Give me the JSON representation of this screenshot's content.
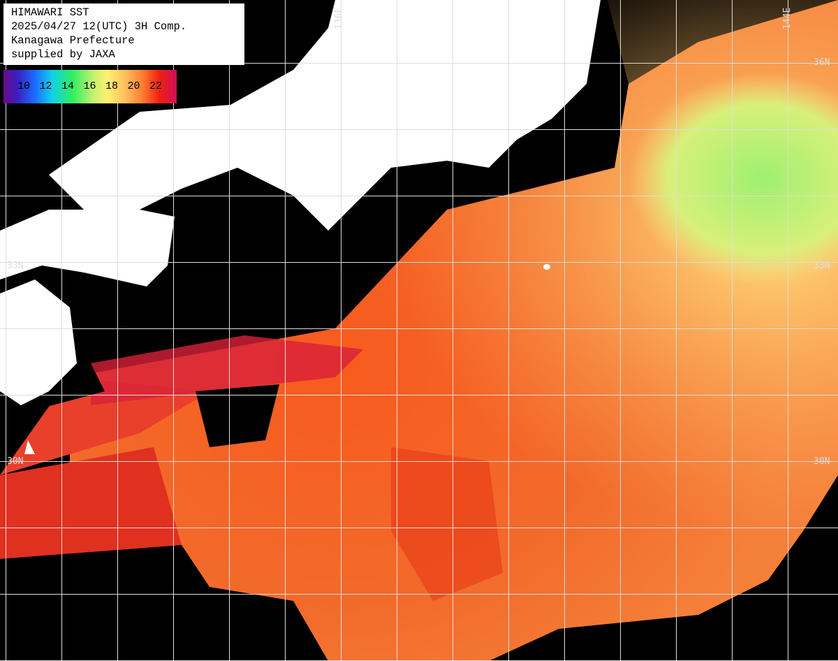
{
  "header": {
    "lines": [
      "HIMAWARI SST",
      "2025/04/27 12(UTC) 3H Comp.",
      "Kanagawa Prefecture",
      "supplied by JAXA"
    ]
  },
  "legend": {
    "labels": [
      "10",
      "12",
      "14",
      "16",
      "18",
      "20",
      "22"
    ]
  },
  "grid_labels": {
    "longitude": [
      "136E",
      "144E"
    ],
    "latitude_right": [
      "36N",
      "33N",
      "30N"
    ],
    "latitude_left": [
      "33N",
      "30N"
    ]
  }
}
